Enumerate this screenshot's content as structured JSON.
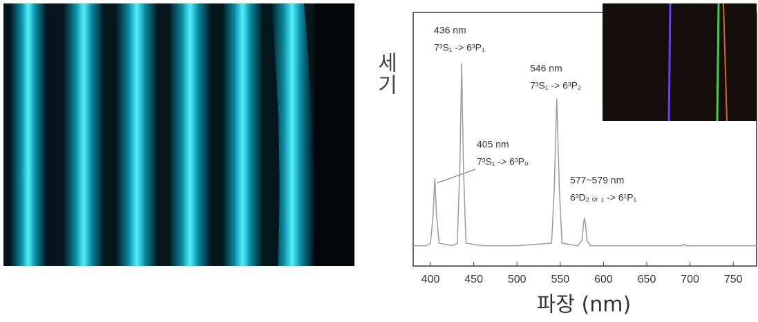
{
  "chart_data": {
    "type": "line",
    "x_label": "파장 (nm)",
    "y_label": "세기",
    "x": [
      380,
      395,
      400,
      403,
      405,
      407,
      410,
      425,
      431,
      434,
      436,
      438,
      441,
      460,
      500,
      540,
      543,
      546,
      549,
      552,
      570,
      575,
      577,
      578,
      579,
      581,
      585,
      650,
      690,
      693,
      696,
      777
    ],
    "series": [
      {
        "color": "#9a9a9a",
        "values": [
          8,
          8,
          9,
          20,
          34.6,
          20,
          9,
          8,
          9,
          40,
          80,
          40,
          9,
          8,
          8,
          9,
          30,
          66,
          30,
          9,
          8,
          10,
          17,
          19,
          17,
          10,
          8,
          8,
          8,
          8.6,
          8,
          8
        ]
      }
    ],
    "xlim": [
      380,
      777
    ],
    "xticks": [
      400,
      450,
      500,
      550,
      600,
      650,
      700,
      750
    ],
    "ylim": [
      0,
      100
    ],
    "annotations": [
      {
        "label": "436 nm",
        "transition": "7³S₁ -> 6³P₁"
      },
      {
        "label": "546 nm",
        "transition": "7³S₁ -> 6³P₂"
      },
      {
        "label": "405 nm",
        "transition": "7³S₁ -> 6³P₀"
      },
      {
        "label": "577~579 nm",
        "transition": "6³D₂ ₒᵣ ₁ -> 6¹P₁"
      }
    ]
  }
}
